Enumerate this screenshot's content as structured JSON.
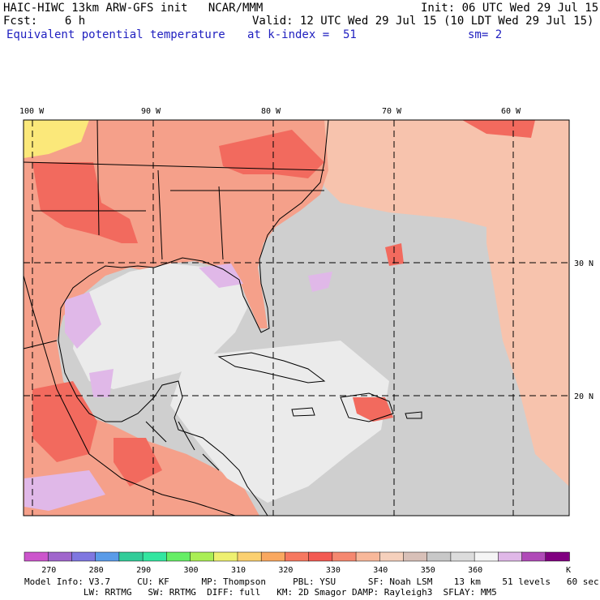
{
  "header": {
    "title_line": "HAIC-HIWC 13km ARW-GFS init   NCAR/MMM",
    "fcst": "Fcst:    6 h",
    "field": "Equivalent potential temperature",
    "init": "Init: 06 UTC Wed 29 Jul 15",
    "valid": "Valid: 12 UTC Wed 29 Jul 15 (10 LDT Wed 29 Jul 15)",
    "level": "at k-index =  51",
    "smooth": "sm= 2"
  },
  "map": {
    "lon_labels": [
      "100 W",
      "90 W",
      "80 W",
      "70 W",
      "60 W"
    ],
    "lat_labels": [
      "30 N",
      "20 N"
    ],
    "colors": {
      "land_hot": "#f26a5e",
      "land_warm": "#f5a08a",
      "land_mid": "#f7c3ad",
      "sea_grey": "#cfcfcf",
      "sea_light": "#ebebeb",
      "violet": "#e0b8e8",
      "yellow": "#fbe87a"
    }
  },
  "colorbar": {
    "colors": [
      "#cc55cc",
      "#a066cc",
      "#7f77e0",
      "#5a9be8",
      "#33cc99",
      "#33e6a0",
      "#66ee66",
      "#aaee55",
      "#eef070",
      "#fbd070",
      "#f9a860",
      "#f67860",
      "#f35a52",
      "#f58870",
      "#f8b89a",
      "#f5d0bc",
      "#d8c0b8",
      "#c8c8c8",
      "#dcdcdc",
      "#f5f5f5",
      "#e0b8e8",
      "#b04ab8",
      "#800080"
    ],
    "tick_labels": [
      "270",
      "280",
      "290",
      "300",
      "310",
      "320",
      "330",
      "340",
      "350",
      "360"
    ],
    "unit": "K"
  },
  "footer": {
    "line1": "Model Info: V3.7     CU: KF      MP: Thompson     PBL: YSU      SF: Noah LSM    13 km    51 levels   60 sec",
    "line2": "           LW: RRTMG   SW: RRTMG  DIFF: full   KM: 2D Smagor DAMP: Rayleigh3  SFLAY: MM5"
  }
}
